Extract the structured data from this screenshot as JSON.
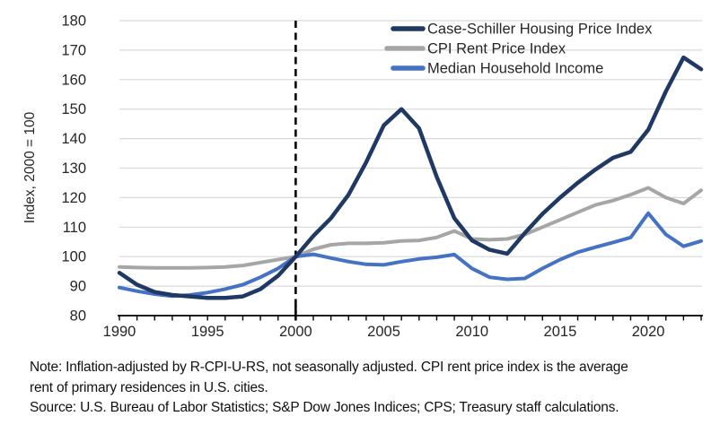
{
  "chart_data": {
    "type": "line",
    "title": "",
    "ylabel": "Index, 2000 = 100",
    "ylim": [
      80,
      180
    ],
    "ytick_step": 10,
    "xlim": [
      1990,
      2023
    ],
    "xticks_labeled": [
      1990,
      1995,
      2000,
      2005,
      2010,
      2015,
      2020
    ],
    "grid": "horizontal-only",
    "gridline_color": "#d9d9d9",
    "axis_text_color": "#262626",
    "annotation_vline": {
      "x": 2000,
      "style": "dashed",
      "color": "#000000"
    },
    "legend_position": "top-right-inside",
    "x": [
      1990,
      1991,
      1992,
      1993,
      1994,
      1995,
      1996,
      1997,
      1998,
      1999,
      2000,
      2001,
      2002,
      2003,
      2004,
      2005,
      2006,
      2007,
      2008,
      2009,
      2010,
      2011,
      2012,
      2013,
      2014,
      2015,
      2016,
      2017,
      2018,
      2019,
      2020,
      2021,
      2022,
      2023
    ],
    "series": [
      {
        "name": "Case-Schiller Housing Price Index",
        "color": "#1f3864",
        "line_width": 4.5,
        "values": [
          94.5,
          90.5,
          88,
          87,
          86.5,
          86,
          86,
          86.5,
          89,
          93.5,
          100,
          107,
          113,
          121,
          132,
          144.5,
          150,
          143.5,
          127,
          113,
          105.5,
          102.3,
          101,
          108,
          114.5,
          120,
          125,
          129.5,
          133.5,
          135.5,
          143,
          156,
          167.5,
          163.5
        ]
      },
      {
        "name": "CPI Rent Price Index",
        "color": "#a6a6a6",
        "line_width": 4,
        "values": [
          96.5,
          96.3,
          96.2,
          96.2,
          96.2,
          96.3,
          96.5,
          97,
          98,
          99,
          100,
          102.5,
          104,
          104.5,
          104.5,
          104.7,
          105.3,
          105.5,
          106.5,
          108.7,
          106,
          105.7,
          106,
          107.5,
          110,
          112.5,
          115,
          117.5,
          119,
          121,
          123.3,
          120,
          118,
          122.5
        ]
      },
      {
        "name": "Median Household Income",
        "color": "#4472c4",
        "line_width": 4,
        "values": [
          89.5,
          88.3,
          87.3,
          86.6,
          87,
          87.8,
          89,
          90.5,
          93,
          96,
          100,
          100.8,
          99.5,
          98.3,
          97.4,
          97.2,
          98.3,
          99.2,
          99.8,
          100.7,
          96,
          93,
          92.3,
          92.6,
          96,
          99,
          101.5,
          103.2,
          104.8,
          106.5,
          114.7,
          107.5,
          103.5,
          105.3
        ]
      }
    ]
  },
  "notes": {
    "line1": "Note: Inflation-adjusted by R-CPI-U-RS, not seasonally adjusted. CPI rent price index is the average",
    "line2": "rent of primary residences in U.S. cities.",
    "line3": "Source: U.S. Bureau of Labor Statistics; S&P Dow Jones Indices; CPS; Treasury staff calculations."
  }
}
